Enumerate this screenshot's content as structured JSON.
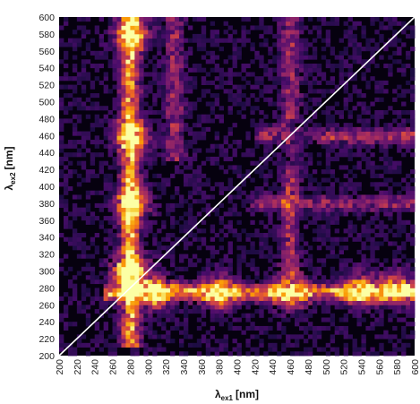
{
  "chart_data": {
    "type": "heatmap",
    "title": "",
    "x_axis": {
      "symbol": "λ",
      "subscript": "ex1",
      "unit": "[nm]",
      "range": [
        200,
        600
      ],
      "ticks": [
        200,
        220,
        240,
        260,
        280,
        300,
        320,
        340,
        360,
        380,
        400,
        420,
        440,
        460,
        480,
        500,
        520,
        540,
        560,
        580,
        600
      ]
    },
    "y_axis": {
      "symbol": "λ",
      "subscript": "ex2",
      "unit": "[nm]",
      "range": [
        200,
        600
      ],
      "ticks": [
        200,
        220,
        240,
        260,
        280,
        300,
        320,
        340,
        360,
        380,
        400,
        420,
        440,
        460,
        480,
        500,
        520,
        540,
        560,
        580,
        600
      ]
    },
    "diagonal": {
      "from": [
        200,
        200
      ],
      "to": [
        600,
        600
      ],
      "color": "#ffffff"
    },
    "colormap": [
      "#000004",
      "#1b0c41",
      "#4a0c6b",
      "#781c6d",
      "#a52c60",
      "#cf4446",
      "#ed6925",
      "#fb9b06",
      "#f7d13d",
      "#fcffa4"
    ],
    "background_color": "#06010f",
    "features": [
      {
        "kind": "vertical-band",
        "x": 280,
        "y_range": [
          220,
          600
        ],
        "intensity": 0.72
      },
      {
        "kind": "horizontal-band",
        "y": 275,
        "x_range": [
          260,
          600
        ],
        "intensity": 0.68
      },
      {
        "kind": "hotspot",
        "x": 280,
        "y": 300,
        "intensity": 0.95
      },
      {
        "kind": "hotspot",
        "x": 310,
        "y": 275,
        "intensity": 0.85
      },
      {
        "kind": "hotspot",
        "x": 282,
        "y": 380,
        "intensity": 0.82
      },
      {
        "kind": "hotspot",
        "x": 282,
        "y": 460,
        "intensity": 0.75
      },
      {
        "kind": "hotspot",
        "x": 282,
        "y": 580,
        "intensity": 0.8
      },
      {
        "kind": "hotspot",
        "x": 380,
        "y": 275,
        "intensity": 0.78
      },
      {
        "kind": "hotspot",
        "x": 460,
        "y": 275,
        "intensity": 0.72
      },
      {
        "kind": "hotspot",
        "x": 540,
        "y": 278,
        "intensity": 0.72
      },
      {
        "kind": "hotspot",
        "x": 580,
        "y": 280,
        "intensity": 0.7
      },
      {
        "kind": "vertical-band",
        "x": 460,
        "y_range": [
          300,
          600
        ],
        "intensity": 0.35
      },
      {
        "kind": "vertical-band",
        "x": 330,
        "y_range": [
          440,
          600
        ],
        "intensity": 0.35
      },
      {
        "kind": "horizontal-band",
        "y": 460,
        "x_range": [
          430,
          600
        ],
        "intensity": 0.4
      },
      {
        "kind": "horizontal-band",
        "y": 380,
        "x_range": [
          420,
          600
        ],
        "intensity": 0.3
      }
    ]
  }
}
